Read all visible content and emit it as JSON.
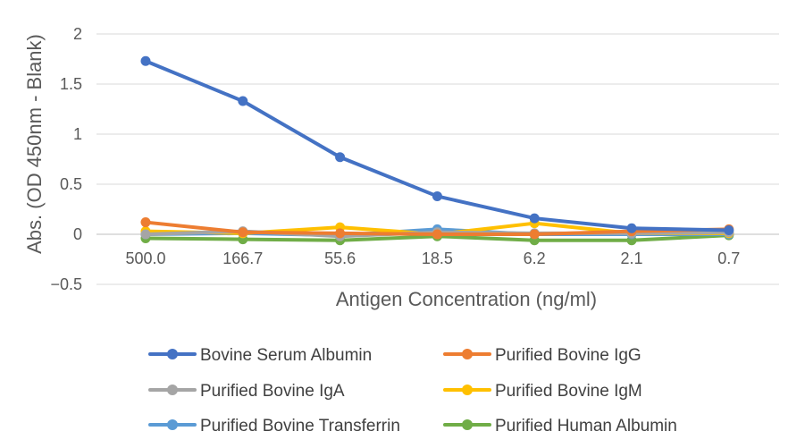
{
  "chart_data": {
    "type": "line",
    "title": "",
    "xlabel": "Antigen Concentration (ng/ml)",
    "ylabel": "Abs. (OD 450nm - Blank)",
    "ylim": [
      -0.5,
      2
    ],
    "yticks": [
      2,
      1.5,
      1,
      0.5,
      0,
      -0.5
    ],
    "ytick_labels": [
      "2",
      "1.5",
      "1",
      "0.5",
      "0",
      "−0.5"
    ],
    "grid": true,
    "legend_position": "bottom",
    "categories": [
      "500.0",
      "166.7",
      "55.6",
      "18.5",
      "6.2",
      "2.1",
      "0.7"
    ],
    "series": [
      {
        "name": "Bovine Serum Albumin",
        "color": "#4472C4",
        "values": [
          1.73,
          1.33,
          0.77,
          0.38,
          0.16,
          0.06,
          0.04
        ]
      },
      {
        "name": "Purified Bovine IgG",
        "color": "#ED7D31",
        "values": [
          0.12,
          0.02,
          0.01,
          0.0,
          0.0,
          0.03,
          0.05
        ]
      },
      {
        "name": "Purified Bovine IgA",
        "color": "#A5A5A5",
        "values": [
          0.0,
          0.03,
          -0.02,
          0.02,
          0.01,
          0.01,
          0.02
        ]
      },
      {
        "name": "Purified Bovine IgM",
        "color": "#FFC000",
        "values": [
          0.03,
          0.01,
          0.07,
          0.0,
          0.11,
          0.01,
          0.01
        ]
      },
      {
        "name": "Purified Bovine Transferrin",
        "color": "#5B9BD5",
        "values": [
          0.0,
          0.01,
          -0.01,
          0.05,
          0.0,
          0.0,
          0.0
        ]
      },
      {
        "name": "Purified Human Albumin",
        "color": "#70AD47",
        "values": [
          -0.04,
          -0.05,
          -0.06,
          -0.02,
          -0.06,
          -0.06,
          -0.01
        ]
      }
    ]
  }
}
